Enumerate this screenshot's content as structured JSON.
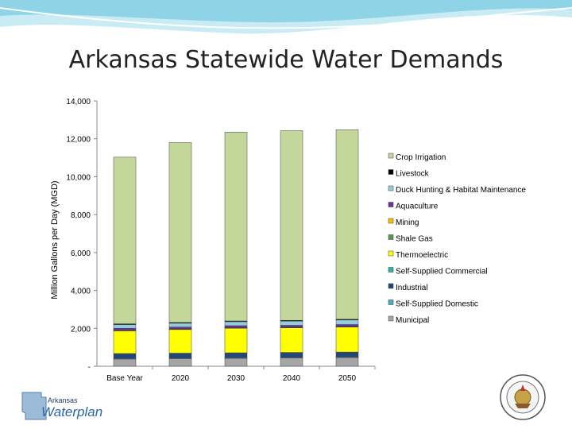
{
  "title": "Arkansas Statewide Water Demands",
  "logo_text": "Arkansas Waterplan",
  "seal_text": "State Seal of Arkansas",
  "colors": {
    "banner_light": "#c9ecf4",
    "banner_mid": "#8fd3e6",
    "banner_white": "#ffffff"
  },
  "chart_data": {
    "type": "bar",
    "stacked": true,
    "ylabel": "Million Gallons per Day (MGD)",
    "xlabel": "",
    "ylim": [
      0,
      14000
    ],
    "yticks": [
      {
        "value": 0,
        "label": "-"
      },
      {
        "value": 2000,
        "label": "2,000"
      },
      {
        "value": 4000,
        "label": "4,000"
      },
      {
        "value": 6000,
        "label": "6,000"
      },
      {
        "value": 8000,
        "label": "8,000"
      },
      {
        "value": 10000,
        "label": "10,000"
      },
      {
        "value": 12000,
        "label": "12,000"
      },
      {
        "value": 14000,
        "label": "14,000"
      }
    ],
    "categories": [
      "Base Year",
      "2020",
      "2030",
      "2040",
      "2050"
    ],
    "legend_position": "right",
    "series": [
      {
        "name": "Municipal",
        "color": "#a6a6a6",
        "values": [
          380,
          400,
          420,
          440,
          460
        ]
      },
      {
        "name": "Self-Supplied Domestic",
        "color": "#4bacc6",
        "values": [
          30,
          30,
          30,
          30,
          30
        ]
      },
      {
        "name": "Industrial",
        "color": "#1f497d",
        "values": [
          240,
          240,
          240,
          240,
          240
        ]
      },
      {
        "name": "Self-Supplied Commercial",
        "color": "#31b39d",
        "values": [
          20,
          20,
          20,
          20,
          20
        ]
      },
      {
        "name": "Thermoelectric",
        "color": "#ffff00",
        "values": [
          1200,
          1250,
          1300,
          1300,
          1320
        ]
      },
      {
        "name": "Shale Gas",
        "color": "#4f9a4f",
        "values": [
          15,
          15,
          15,
          15,
          15
        ]
      },
      {
        "name": "Mining",
        "color": "#f2c200",
        "values": [
          15,
          15,
          15,
          15,
          15
        ]
      },
      {
        "name": "Aquaculture",
        "color": "#7030a0",
        "values": [
          100,
          100,
          100,
          100,
          100
        ]
      },
      {
        "name": "Duck Hunting & Habitat Maintenance",
        "color": "#93cddd",
        "values": [
          200,
          200,
          210,
          220,
          240
        ]
      },
      {
        "name": "Livestock",
        "color": "#000000",
        "values": [
          40,
          40,
          40,
          40,
          40
        ]
      },
      {
        "name": "Crop Irrigation",
        "color": "#c4d79b",
        "values": [
          8790,
          9490,
          9960,
          10010,
          10000
        ]
      }
    ]
  }
}
